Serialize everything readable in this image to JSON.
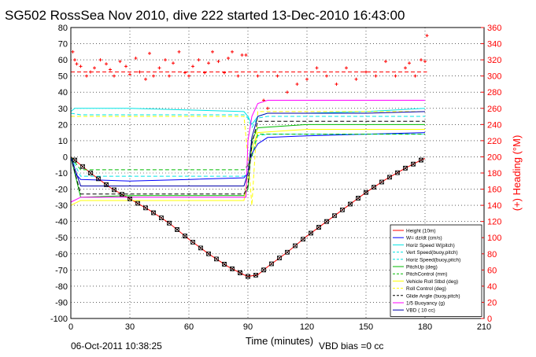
{
  "chart_data": {
    "type": "line",
    "title": "SG502 RossSea Nov 2010, dive 222 started 13-Dec-2010 16:43:00",
    "xlabel": "Time (minutes)",
    "ylabel_right": "(+) Heading (°M)",
    "footer_left": "06-Oct-2011 10:38:25",
    "footer_right": "VBD bias =0 cc",
    "xlim": [
      0,
      210
    ],
    "ylim": [
      -100,
      80
    ],
    "ylim_right": [
      0,
      360
    ],
    "xticks": [
      "0",
      "30",
      "60",
      "90",
      "120",
      "150",
      "180",
      "210"
    ],
    "yticks": [
      "-100",
      "-90",
      "-80",
      "-70",
      "-60",
      "-50",
      "-40",
      "-30",
      "-20",
      "-10",
      "0",
      "10",
      "20",
      "30",
      "40",
      "50",
      "60",
      "70",
      "80"
    ],
    "yticks_right": [
      "0",
      "20",
      "40",
      "60",
      "80",
      "100",
      "120",
      "140",
      "160",
      "180",
      "200",
      "220",
      "240",
      "260",
      "280",
      "300",
      "320",
      "340",
      "360"
    ],
    "grid": true,
    "legend_placement": "lower-right",
    "colors": {
      "height": "#ff0000",
      "w": "#0000ff",
      "horiz_speed": "#00e5e5",
      "pitch": "#00bb00",
      "roll": "#ffff00",
      "vbd": "#0000aa",
      "buoyancy": "#ff00ff",
      "heading": "#ff0000",
      "glide": "#000000"
    },
    "series": [
      {
        "name": "Height (10m)",
        "x": [
          0,
          5,
          10,
          20,
          30,
          40,
          50,
          60,
          70,
          80,
          88,
          90,
          95,
          100,
          110,
          120,
          130,
          140,
          150,
          160,
          170,
          178,
          180
        ],
        "values": [
          0,
          -5,
          -10,
          -19,
          -26,
          -33,
          -41,
          -51,
          -60,
          -68,
          -73,
          -74,
          -73,
          -68,
          -59,
          -49,
          -40,
          -31,
          -22,
          -14,
          -7,
          -2,
          -1
        ]
      },
      {
        "name": "W= dz/dt (cm/s)",
        "x": [
          0,
          2,
          5,
          30,
          60,
          88,
          90,
          92,
          95,
          100,
          120,
          150,
          180
        ],
        "values": [
          0,
          -10,
          -14,
          -15,
          -14,
          -13,
          -10,
          2,
          8,
          12,
          13,
          14,
          15
        ]
      },
      {
        "name": "Horiz Speed W(pitch)",
        "x": [
          0,
          2,
          5,
          30,
          60,
          88,
          90,
          92,
          95,
          100,
          120,
          150,
          180
        ],
        "values": [
          28,
          30,
          30,
          30,
          29,
          28,
          25,
          20,
          25,
          27,
          27,
          28,
          30
        ]
      },
      {
        "name": "Vert Speed(buoy,pitch)",
        "x": [
          0,
          5,
          30,
          60,
          88,
          90,
          92,
          95,
          100,
          120,
          150,
          180
        ],
        "values": [
          0,
          -12,
          -12,
          -12,
          -12,
          -10,
          5,
          13,
          14,
          14,
          14,
          14
        ]
      },
      {
        "name": "Horiz Speed(buoy,pitch)",
        "x": [
          0,
          5,
          30,
          60,
          88,
          90,
          92,
          95,
          100,
          120,
          150,
          180
        ],
        "values": [
          27,
          26,
          26,
          26,
          26,
          24,
          18,
          24,
          25,
          25,
          25,
          25
        ]
      },
      {
        "name": "PitchUp (deg)",
        "x": [
          0,
          5,
          30,
          60,
          88,
          90,
          92,
          95,
          120,
          150,
          180
        ],
        "values": [
          0,
          -25,
          -24,
          -24,
          -24,
          -20,
          10,
          18,
          20,
          20,
          20
        ]
      },
      {
        "name": "PitchControl (mm)",
        "x": [
          0,
          5,
          30,
          60,
          88,
          90,
          92,
          95,
          120,
          150,
          180
        ],
        "values": [
          0,
          -8,
          -8,
          -8,
          -8,
          -5,
          0,
          14,
          14,
          14,
          14
        ]
      },
      {
        "name": "Vehicle Roll Stbd (deg)",
        "x": [
          0,
          5,
          30,
          60,
          88,
          90,
          92,
          95,
          120,
          150,
          180
        ],
        "values": [
          -30,
          -27,
          -27,
          -27,
          -27,
          -10,
          5,
          15,
          17,
          17,
          17
        ]
      },
      {
        "name": "Roll Control (deg)",
        "x": [
          0,
          5,
          30,
          60,
          88,
          90,
          92,
          95,
          120,
          150,
          180
        ],
        "values": [
          25,
          25,
          25,
          25,
          25,
          0,
          -30,
          28,
          28,
          28,
          28
        ]
      },
      {
        "name": "Glide Angle (buoy,pitch)",
        "x": [
          0,
          5,
          30,
          60,
          88,
          90,
          92,
          95,
          120,
          150,
          180
        ],
        "values": [
          0,
          -23,
          -23,
          -23,
          -23,
          -18,
          8,
          22,
          22,
          22,
          22
        ]
      },
      {
        "name": "1/5 Buoyancy (g)",
        "x": [
          0,
          5,
          30,
          60,
          88,
          89,
          90,
          92,
          95,
          100,
          120,
          150,
          180
        ],
        "values": [
          -28,
          -25,
          -25,
          -25,
          -25,
          -25,
          10,
          25,
          33,
          35,
          35,
          35,
          35
        ]
      },
      {
        "name": "VBD ( 10 cc)",
        "x": [
          0,
          5,
          30,
          60,
          88,
          90,
          92,
          95,
          100,
          120,
          150,
          180
        ],
        "values": [
          0,
          -18,
          -18,
          -18,
          -18,
          -10,
          12,
          25,
          27,
          27,
          27,
          28
        ]
      }
    ],
    "heading_series": {
      "name": "(+) Heading (°M)",
      "x": [
        1,
        2,
        3,
        5,
        8,
        10,
        12,
        15,
        18,
        20,
        22,
        25,
        28,
        30,
        33,
        35,
        38,
        40,
        42,
        45,
        48,
        50,
        52,
        55,
        58,
        60,
        62,
        65,
        68,
        70,
        72,
        75,
        78,
        80,
        82,
        85,
        87,
        89,
        95,
        98,
        100,
        105,
        110,
        115,
        120,
        125,
        130,
        135,
        140,
        145,
        150,
        155,
        160,
        165,
        170,
        172,
        175,
        178,
        180,
        181
      ],
      "values": [
        330,
        320,
        315,
        312,
        300,
        305,
        310,
        320,
        315,
        308,
        300,
        318,
        312,
        302,
        322,
        305,
        296,
        328,
        300,
        310,
        320,
        300,
        316,
        330,
        304,
        300,
        312,
        320,
        304,
        316,
        330,
        318,
        304,
        322,
        330,
        300,
        326,
        326,
        300,
        270,
        260,
        300,
        280,
        290,
        296,
        310,
        300,
        290,
        310,
        296,
        305,
        300,
        318,
        300,
        310,
        316,
        300,
        320,
        318,
        350
      ]
    },
    "legend": [
      "Height (10m)",
      "W= dz/dt (cm/s)",
      "Horiz Speed W(pitch)",
      "Vert Speed(buoy,pitch)",
      "Horiz Speed(buoy,pitch)",
      "PitchUp (deg)",
      "PitchControl (mm)",
      "Vehicle Roll Stbd (deg)",
      "Roll Control (deg)",
      "Glide Angle (buoy,pitch)",
      "1/5 Buoyancy (g)",
      "VBD ( 10 cc)"
    ]
  }
}
